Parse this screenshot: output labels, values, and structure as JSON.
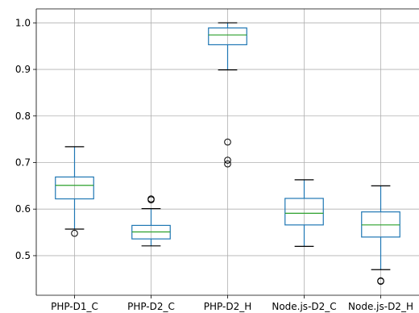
{
  "chart_data": {
    "type": "boxplot",
    "title": "",
    "xlabel": "",
    "ylabel": "",
    "ylim": [
      0.415,
      1.03
    ],
    "yticks": [
      0.5,
      0.6,
      0.7,
      0.8,
      0.9,
      1.0
    ],
    "ytick_labels": [
      "0.5",
      "0.6",
      "0.7",
      "0.8",
      "0.9",
      "1.0"
    ],
    "grid": true,
    "categories": [
      "PHP-D1_C",
      "PHP-D2_C",
      "PHP-D2_H",
      "Node.js-D2_C",
      "Node.js-D2_H"
    ],
    "boxes": [
      {
        "whisker_low": 0.557,
        "q1": 0.622,
        "median": 0.651,
        "q3": 0.669,
        "whisker_high": 0.734,
        "outliers": [
          0.548
        ]
      },
      {
        "whisker_low": 0.521,
        "q1": 0.536,
        "median": 0.551,
        "q3": 0.565,
        "whisker_high": 0.601,
        "outliers": [
          0.62,
          0.622
        ]
      },
      {
        "whisker_low": 0.899,
        "q1": 0.953,
        "median": 0.974,
        "q3": 0.989,
        "whisker_high": 1.0,
        "outliers": [
          0.744,
          0.705,
          0.697
        ]
      },
      {
        "whisker_low": 0.52,
        "q1": 0.566,
        "median": 0.591,
        "q3": 0.623,
        "whisker_high": 0.663,
        "outliers": []
      },
      {
        "whisker_low": 0.47,
        "q1": 0.54,
        "median": 0.566,
        "q3": 0.594,
        "whisker_high": 0.65,
        "outliers": [
          0.446,
          0.445
        ]
      }
    ],
    "colors": {
      "box": "#1f77b4",
      "median": "#2ca02c",
      "grid": "#b0b0b0",
      "axis": "#000000",
      "outlier": "#000000"
    }
  }
}
